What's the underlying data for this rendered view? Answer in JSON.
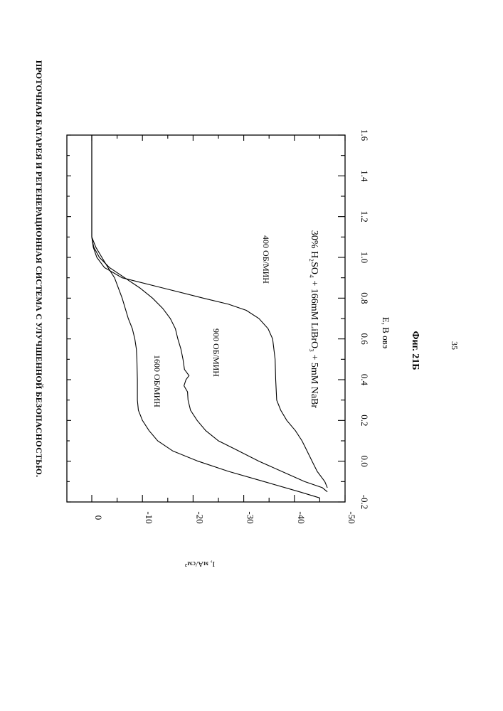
{
  "header": {
    "title": "ПРОТОЧНАЯ БАТАРЕЯ И РЕГЕНЕРАЦИОННАЯ СИСТЕМА С УЛУЧШЕННОЙ БЕЗОПАСНОСТЬЮ."
  },
  "figure": {
    "caption": "Фиг. 21Б",
    "page_number": "35"
  },
  "chart_data": {
    "type": "line",
    "title": "",
    "xlabel": "E, В овэ",
    "ylabel": "I, мА/см²",
    "annotation": "30% H₂SO₄ + 166mM LiBrO₃ + 5mM NaBr",
    "xlim": [
      -0.2,
      1.6
    ],
    "ylim": [
      -50,
      5
    ],
    "x_ticks": [
      "-0.2",
      "0.0",
      "0.2",
      "0.4",
      "0.6",
      "0.8",
      "1.0",
      "1.2",
      "1.4",
      "1.6"
    ],
    "y_ticks": [
      "0",
      "-10",
      "-20",
      "-30",
      "-40",
      "-50"
    ],
    "grid": false,
    "series": [
      {
        "name": "400 ОБ/МИН",
        "points": [
          [
            1.6,
            0
          ],
          [
            1.1,
            0
          ],
          [
            1.05,
            -0.3
          ],
          [
            1.0,
            -1.0
          ],
          [
            0.95,
            -2.5
          ],
          [
            0.9,
            -6
          ],
          [
            0.85,
            -14
          ],
          [
            0.8,
            -22
          ],
          [
            0.77,
            -27
          ],
          [
            0.74,
            -30.5
          ],
          [
            0.7,
            -33
          ],
          [
            0.65,
            -34.8
          ],
          [
            0.6,
            -35.7
          ],
          [
            0.5,
            -36.2
          ],
          [
            0.4,
            -36.3
          ],
          [
            0.3,
            -36.5
          ],
          [
            0.25,
            -37.3
          ],
          [
            0.2,
            -38.5
          ],
          [
            0.15,
            -40.2
          ],
          [
            0.1,
            -41.5
          ],
          [
            0.05,
            -42.5
          ],
          [
            0.0,
            -43.5
          ],
          [
            -0.05,
            -44.5
          ],
          [
            -0.1,
            -46.0
          ],
          [
            -0.13,
            -46.5
          ]
        ]
      },
      {
        "name": "900 ОБ/МИН",
        "points": [
          [
            1.6,
            0
          ],
          [
            1.1,
            0
          ],
          [
            1.05,
            -0.4
          ],
          [
            1.0,
            -1.5
          ],
          [
            0.95,
            -3.5
          ],
          [
            0.9,
            -6.5
          ],
          [
            0.85,
            -9.5
          ],
          [
            0.8,
            -12
          ],
          [
            0.75,
            -14
          ],
          [
            0.7,
            -15.5
          ],
          [
            0.65,
            -16.5
          ],
          [
            0.6,
            -17
          ],
          [
            0.55,
            -17.6
          ],
          [
            0.5,
            -18
          ],
          [
            0.45,
            -18.3
          ],
          [
            0.42,
            -19.2
          ],
          [
            0.4,
            -18.6
          ],
          [
            0.37,
            -18.2
          ],
          [
            0.34,
            -18.9
          ],
          [
            0.3,
            -19.0
          ],
          [
            0.25,
            -19.5
          ],
          [
            0.2,
            -20.8
          ],
          [
            0.15,
            -22.5
          ],
          [
            0.1,
            -25
          ],
          [
            0.05,
            -29
          ],
          [
            0.0,
            -33
          ],
          [
            -0.05,
            -37.5
          ],
          [
            -0.1,
            -42
          ],
          [
            -0.13,
            -45.5
          ],
          [
            -0.15,
            -46.5
          ]
        ]
      },
      {
        "name": "1600 ОБ/МИН",
        "points": [
          [
            1.6,
            0
          ],
          [
            1.1,
            0
          ],
          [
            1.05,
            -0.8
          ],
          [
            1.0,
            -2.0
          ],
          [
            0.95,
            -3.2
          ],
          [
            0.9,
            -4.5
          ],
          [
            0.8,
            -6.0
          ],
          [
            0.7,
            -7.2
          ],
          [
            0.65,
            -8.0
          ],
          [
            0.6,
            -8.5
          ],
          [
            0.55,
            -8.8
          ],
          [
            0.5,
            -8.9
          ],
          [
            0.4,
            -9.0
          ],
          [
            0.3,
            -9.0
          ],
          [
            0.25,
            -9.2
          ],
          [
            0.2,
            -10.0
          ],
          [
            0.15,
            -11.3
          ],
          [
            0.1,
            -13.0
          ],
          [
            0.05,
            -16.0
          ],
          [
            0.0,
            -21.0
          ],
          [
            -0.05,
            -27.0
          ],
          [
            -0.1,
            -34.0
          ],
          [
            -0.15,
            -41.0
          ],
          [
            -0.18,
            -45.0
          ]
        ]
      }
    ]
  }
}
